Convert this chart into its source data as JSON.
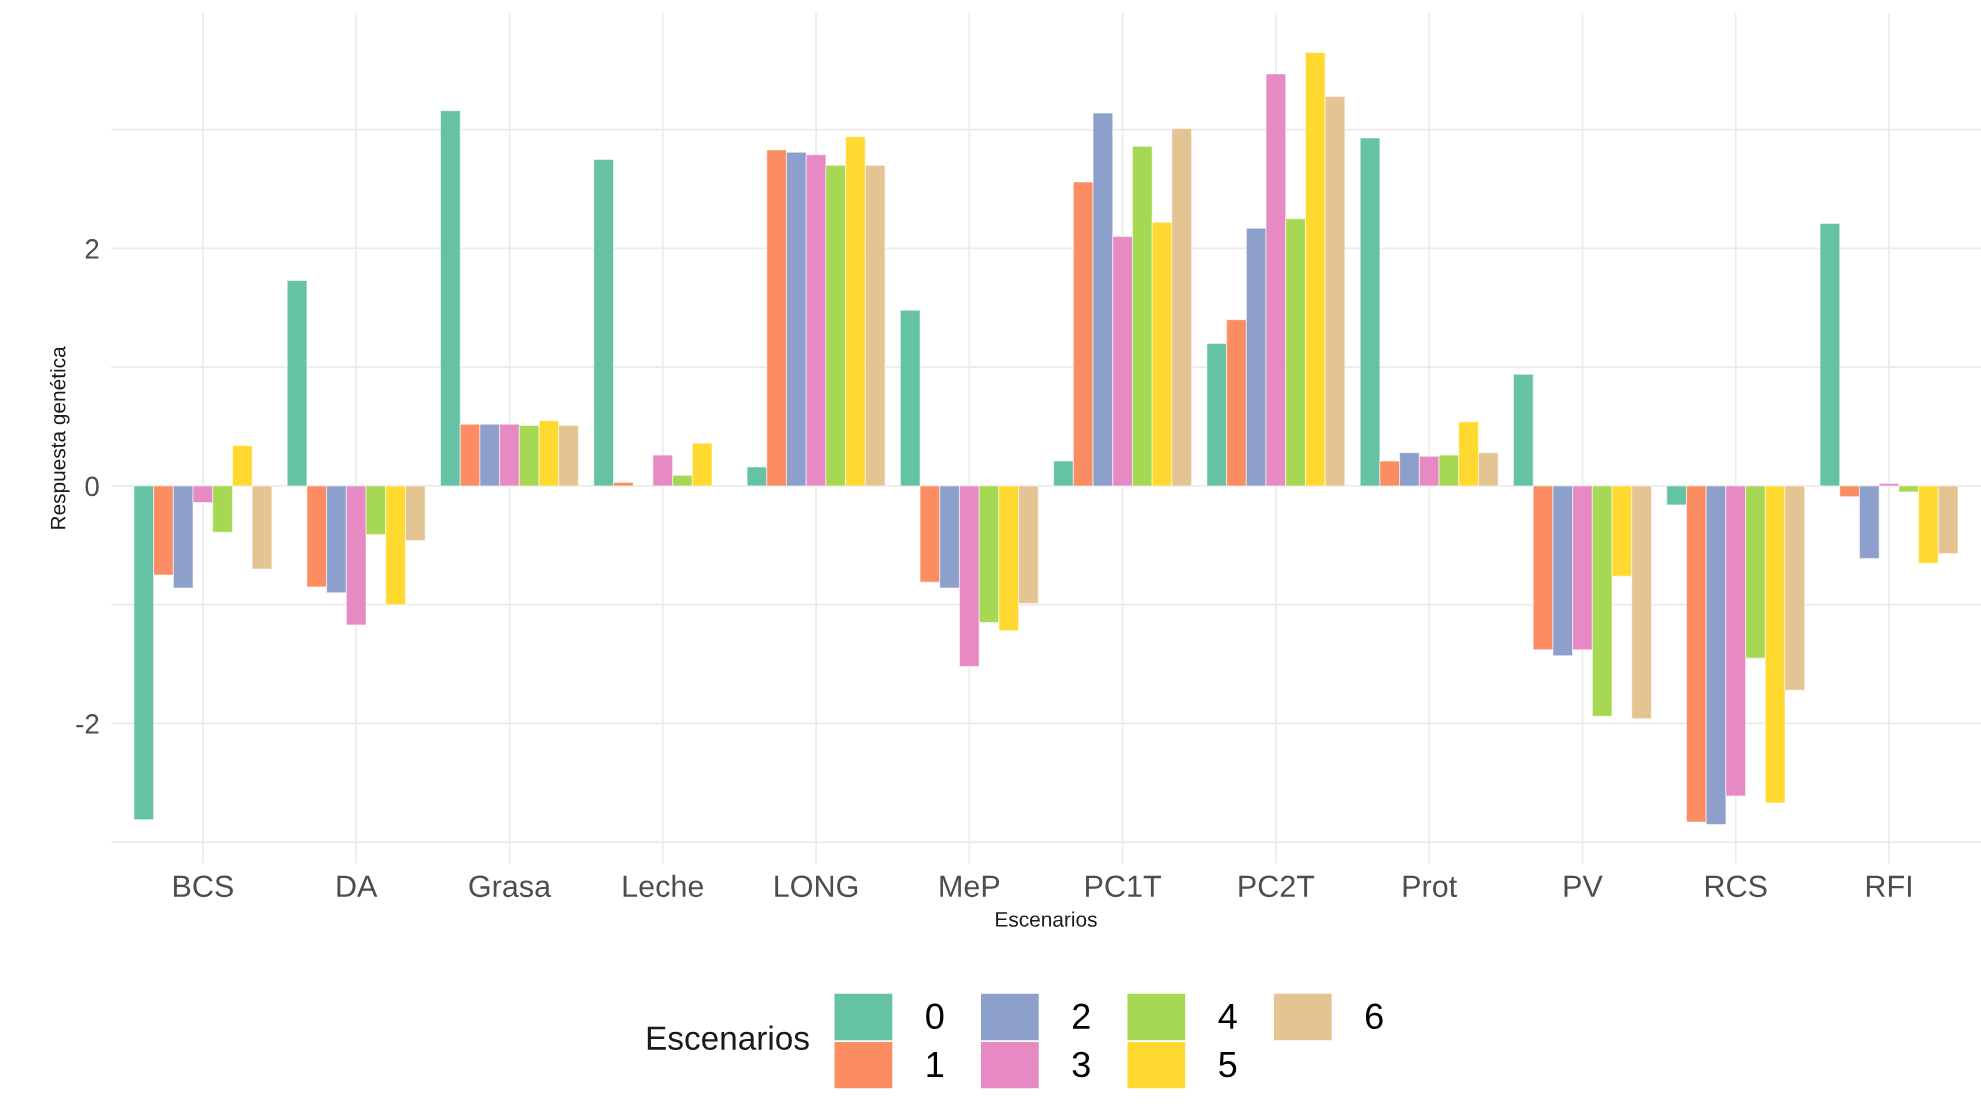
{
  "chart_data": {
    "type": "bar",
    "xlabel": "Escenarios",
    "ylabel": "Respuesta genética",
    "legend_title": "Escenarios",
    "legend": "bottom",
    "grid": true,
    "categories": [
      "BCS",
      "DA",
      "Grasa",
      "Leche",
      "LONG",
      "MeP",
      "PC1T",
      "PC2T",
      "Prot",
      "PV",
      "RCS",
      "RFI"
    ],
    "ylim": [
      -3.18,
      3.98
    ],
    "yticks": [
      {
        "value": -3,
        "label": null
      },
      -2,
      {
        "value": -1,
        "label": null
      },
      0,
      {
        "value": 1,
        "label": null
      },
      2,
      {
        "value": 3,
        "label": null
      }
    ],
    "series": [
      {
        "name": "0",
        "color": "#66c2a5",
        "values": [
          -2.81,
          1.73,
          3.16,
          2.75,
          0.16,
          1.48,
          0.21,
          1.2,
          2.93,
          0.94,
          -0.16,
          2.21
        ]
      },
      {
        "name": "1",
        "color": "#fc8d62",
        "values": [
          -0.75,
          -0.85,
          0.52,
          0.03,
          2.83,
          -0.81,
          2.56,
          1.4,
          0.21,
          -1.38,
          -2.83,
          -0.09
        ]
      },
      {
        "name": "2",
        "color": "#8da0cb",
        "values": [
          -0.86,
          -0.9,
          0.52,
          null,
          2.81,
          -0.86,
          3.14,
          2.17,
          0.28,
          -1.43,
          -2.85,
          -0.61
        ]
      },
      {
        "name": "3",
        "color": "#e78ac3",
        "values": [
          -0.14,
          -1.17,
          0.52,
          0.26,
          2.79,
          -1.52,
          2.1,
          3.47,
          0.25,
          -1.38,
          -2.61,
          0.02
        ]
      },
      {
        "name": "4",
        "color": "#a6d854",
        "values": [
          -0.39,
          -0.41,
          0.51,
          0.09,
          2.7,
          -1.15,
          2.86,
          2.25,
          0.26,
          -1.94,
          -1.45,
          -0.05
        ]
      },
      {
        "name": "5",
        "color": "#ffd92f",
        "values": [
          0.34,
          -1.0,
          0.55,
          0.36,
          2.94,
          -1.22,
          2.22,
          3.65,
          0.54,
          -0.76,
          -2.67,
          -0.65
        ]
      },
      {
        "name": "6",
        "color": "#e5c494",
        "values": [
          -0.7,
          -0.46,
          0.51,
          null,
          2.7,
          -0.99,
          3.01,
          3.28,
          0.28,
          -1.96,
          -1.72,
          -0.57
        ]
      }
    ]
  }
}
